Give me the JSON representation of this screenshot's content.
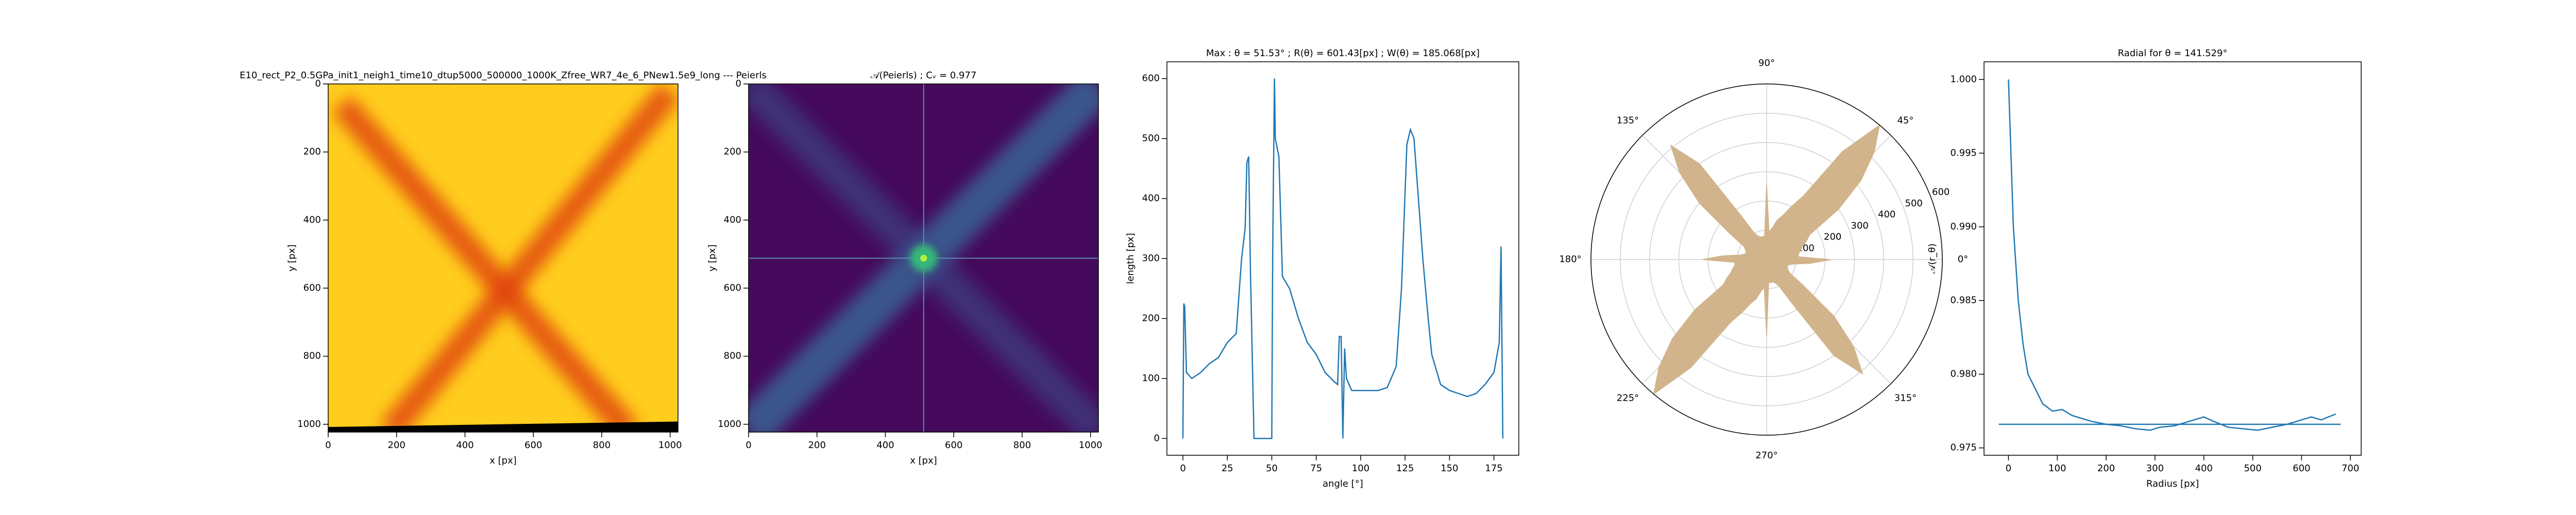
{
  "chart_data": [
    {
      "type": "image",
      "title": "E10_rect_P2_0.5GPa_init1_neigh1_time10_dtup5000_500000_1000K_Zfree_WR7_4e_6_PNew1.5e9_long --- Peierls",
      "xlabel": "x [px]",
      "ylabel": "y [px]",
      "xlim": [
        0,
        1023
      ],
      "ylim": [
        1023,
        0
      ],
      "xticks": [
        0,
        200,
        400,
        600,
        800,
        1000
      ],
      "yticks": [
        0,
        200,
        400,
        600,
        800,
        1000
      ]
    },
    {
      "type": "image",
      "title": "𝒜(Peierls) ; Cᵥ = 0.977",
      "xlabel": "x [px]",
      "ylabel": "y [px]",
      "xlim": [
        0,
        1023
      ],
      "ylim": [
        1023,
        0
      ],
      "xticks": [
        0,
        200,
        400,
        600,
        800,
        1000
      ],
      "yticks": [
        0,
        200,
        400,
        600,
        800,
        1000
      ]
    },
    {
      "type": "line",
      "title": "Max : θ = 51.53° ; R(θ) = 601.43[px] ; W(θ) = 185.068[px]",
      "xlabel": "angle [°]",
      "ylabel": "length [px]",
      "xlim": [
        -9,
        189
      ],
      "ylim": [
        -28,
        628
      ],
      "xticks": [
        0,
        25,
        50,
        75,
        100,
        125,
        150,
        175
      ],
      "yticks": [
        0,
        100,
        200,
        300,
        400,
        500,
        600
      ],
      "color": "#1f77b4",
      "x": [
        0,
        0.5,
        1,
        2,
        5,
        10,
        15,
        20,
        25,
        30,
        33,
        35,
        36,
        37,
        38,
        40,
        45,
        50,
        50.5,
        51.5,
        52,
        54,
        56,
        60,
        65,
        70,
        75,
        80,
        85,
        87,
        88,
        89,
        90,
        91,
        92,
        95,
        100,
        105,
        110,
        115,
        120,
        123,
        126,
        128,
        130,
        132,
        135,
        138,
        140,
        145,
        150,
        155,
        160,
        165,
        170,
        175,
        178,
        179,
        180
      ],
      "values": [
        0,
        225,
        220,
        110,
        100,
        110,
        125,
        135,
        160,
        175,
        300,
        350,
        460,
        470,
        280,
        0,
        0,
        0,
        300,
        600,
        500,
        470,
        270,
        250,
        200,
        160,
        140,
        110,
        95,
        90,
        170,
        170,
        0,
        150,
        100,
        80,
        80,
        80,
        80,
        85,
        120,
        250,
        490,
        515,
        500,
        420,
        300,
        200,
        140,
        90,
        80,
        75,
        70,
        75,
        90,
        110,
        160,
        320,
        0
      ]
    },
    {
      "type": "polar",
      "rlim": [
        0,
        600
      ],
      "rticks": [
        100,
        200,
        300,
        400,
        500,
        600
      ],
      "thetaticks": [
        {
          "value": 0,
          "label": "0°"
        },
        {
          "value": 45,
          "label": "45°"
        },
        {
          "value": 90,
          "label": "90°"
        },
        {
          "value": 135,
          "label": "135°"
        },
        {
          "value": 180,
          "label": "180°"
        },
        {
          "value": 225,
          "label": "225°"
        },
        {
          "value": 270,
          "label": "270°"
        },
        {
          "value": 315,
          "label": "315°"
        }
      ],
      "color": "#d2b48c",
      "theta": [
        0,
        5,
        10,
        15,
        20,
        25,
        30,
        35,
        40,
        45,
        50,
        55,
        60,
        65,
        70,
        75,
        80,
        85,
        90,
        95,
        100,
        105,
        110,
        115,
        120,
        125,
        130,
        135,
        140,
        145,
        150,
        155,
        160,
        165,
        170,
        175,
        180,
        185,
        190,
        195,
        200,
        205,
        210,
        215,
        220,
        225,
        230,
        235,
        240,
        245,
        250,
        255,
        260,
        265,
        270,
        275,
        280,
        285,
        290,
        295,
        300,
        305,
        310,
        315,
        320,
        325,
        330,
        335,
        340,
        345,
        350,
        355
      ],
      "values": [
        220,
        110,
        110,
        120,
        130,
        150,
        170,
        300,
        420,
        520,
        600,
        450,
        250,
        200,
        160,
        140,
        110,
        95,
        260,
        80,
        80,
        80,
        85,
        100,
        170,
        400,
        510,
        420,
        300,
        150,
        90,
        80,
        75,
        75,
        90,
        150,
        220,
        110,
        110,
        120,
        130,
        150,
        170,
        300,
        420,
        520,
        600,
        450,
        250,
        200,
        160,
        140,
        110,
        95,
        260,
        80,
        80,
        80,
        85,
        100,
        170,
        400,
        510,
        420,
        300,
        150,
        90,
        80,
        75,
        75,
        90,
        150
      ]
    },
    {
      "type": "line",
      "title": "Radial for θ = 141.529°",
      "xlabel": "Radius [px]",
      "ylabel": "𝒜(r_θ)",
      "xlim": [
        -50,
        722
      ],
      "ylim": [
        0.9745,
        1.0012
      ],
      "xticks": [
        0,
        100,
        200,
        300,
        400,
        500,
        600,
        700
      ],
      "yticks": [
        {
          "value": 0.975,
          "label": "0.975"
        },
        {
          "value": 0.98,
          "label": "0.980"
        },
        {
          "value": 0.985,
          "label": "0.985"
        },
        {
          "value": 0.99,
          "label": "0.990"
        },
        {
          "value": 0.995,
          "label": "0.995"
        },
        {
          "value": 1.0,
          "label": "1.000"
        }
      ],
      "color": "#1f77b4",
      "x": [
        0,
        5,
        10,
        20,
        30,
        40,
        55,
        70,
        90,
        110,
        130,
        150,
        170,
        200,
        230,
        260,
        290,
        310,
        340,
        370,
        400,
        420,
        450,
        480,
        510,
        540,
        570,
        600,
        620,
        640,
        670
      ],
      "values": [
        1.0,
        0.995,
        0.99,
        0.985,
        0.982,
        0.98,
        0.979,
        0.978,
        0.9775,
        0.9776,
        0.9772,
        0.977,
        0.9768,
        0.9766,
        0.9765,
        0.9763,
        0.9762,
        0.9764,
        0.9765,
        0.9768,
        0.9771,
        0.9768,
        0.9764,
        0.9763,
        0.9762,
        0.9764,
        0.9766,
        0.9769,
        0.9771,
        0.9769,
        0.9773
      ],
      "hline": {
        "y": 0.9766,
        "xmin": -20,
        "xmax": 680
      }
    }
  ]
}
